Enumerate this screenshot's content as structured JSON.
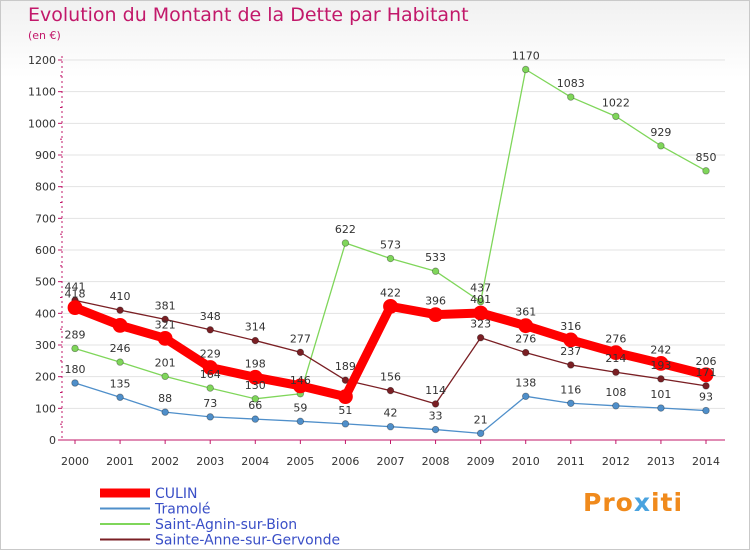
{
  "chart_data": {
    "type": "line",
    "title": "Evolution du Montant de la Dette par Habitant",
    "subtitle": "(en €)",
    "xlabel": "",
    "ylabel": "",
    "ylim": [
      0,
      1200
    ],
    "yticks": [
      0,
      100,
      200,
      300,
      400,
      500,
      600,
      700,
      800,
      900,
      1000,
      1100,
      1200
    ],
    "x": [
      "2000",
      "2001",
      "2002",
      "2003",
      "2004",
      "2005",
      "2006",
      "2007",
      "2008",
      "2009",
      "2010",
      "2011",
      "2012",
      "2013",
      "2014"
    ],
    "series": [
      {
        "name": "CULIN",
        "color": "#ff0000",
        "emphasis": true,
        "values": [
          418,
          362,
          321,
          229,
          198,
          171,
          137,
          422,
          396,
          401,
          361,
          316,
          276,
          242,
          206
        ],
        "labels": [
          "418",
          "",
          "321",
          "229",
          "198",
          "",
          "",
          "422",
          "396",
          "401",
          "361",
          "316",
          "276",
          "242",
          "206"
        ]
      },
      {
        "name": "Tramolé",
        "color": "#4f8fca",
        "values": [
          180,
          135,
          88,
          73,
          66,
          59,
          51,
          42,
          33,
          21,
          138,
          116,
          108,
          101,
          93
        ],
        "labels": [
          "180",
          "135",
          "88",
          "73",
          "66",
          "59",
          "51",
          "42",
          "33",
          "21",
          "138",
          "116",
          "108",
          "101",
          "93"
        ]
      },
      {
        "name": "Saint-Agnin-sur-Bion",
        "color": "#7fd65a",
        "values": [
          289,
          246,
          201,
          164,
          130,
          146,
          622,
          573,
          533,
          437,
          1170,
          1083,
          1022,
          929,
          850
        ],
        "labels": [
          "289",
          "246",
          "201",
          "164",
          "130",
          "146",
          "622",
          "573",
          "533",
          "437",
          "1170",
          "1083",
          "1022",
          "929",
          "850"
        ]
      },
      {
        "name": "Sainte-Anne-sur-Gervonde",
        "color": "#7a1f24",
        "values": [
          441,
          410,
          381,
          348,
          314,
          277,
          189,
          156,
          114,
          323,
          276,
          237,
          214,
          193,
          171
        ],
        "labels": [
          "441",
          "410",
          "381",
          "348",
          "314",
          "277",
          "189",
          "156",
          "114",
          "323",
          "276",
          "237",
          "214",
          "193",
          "171"
        ]
      }
    ],
    "legend_position": "bottom-left"
  },
  "watermark": "Proxiti"
}
